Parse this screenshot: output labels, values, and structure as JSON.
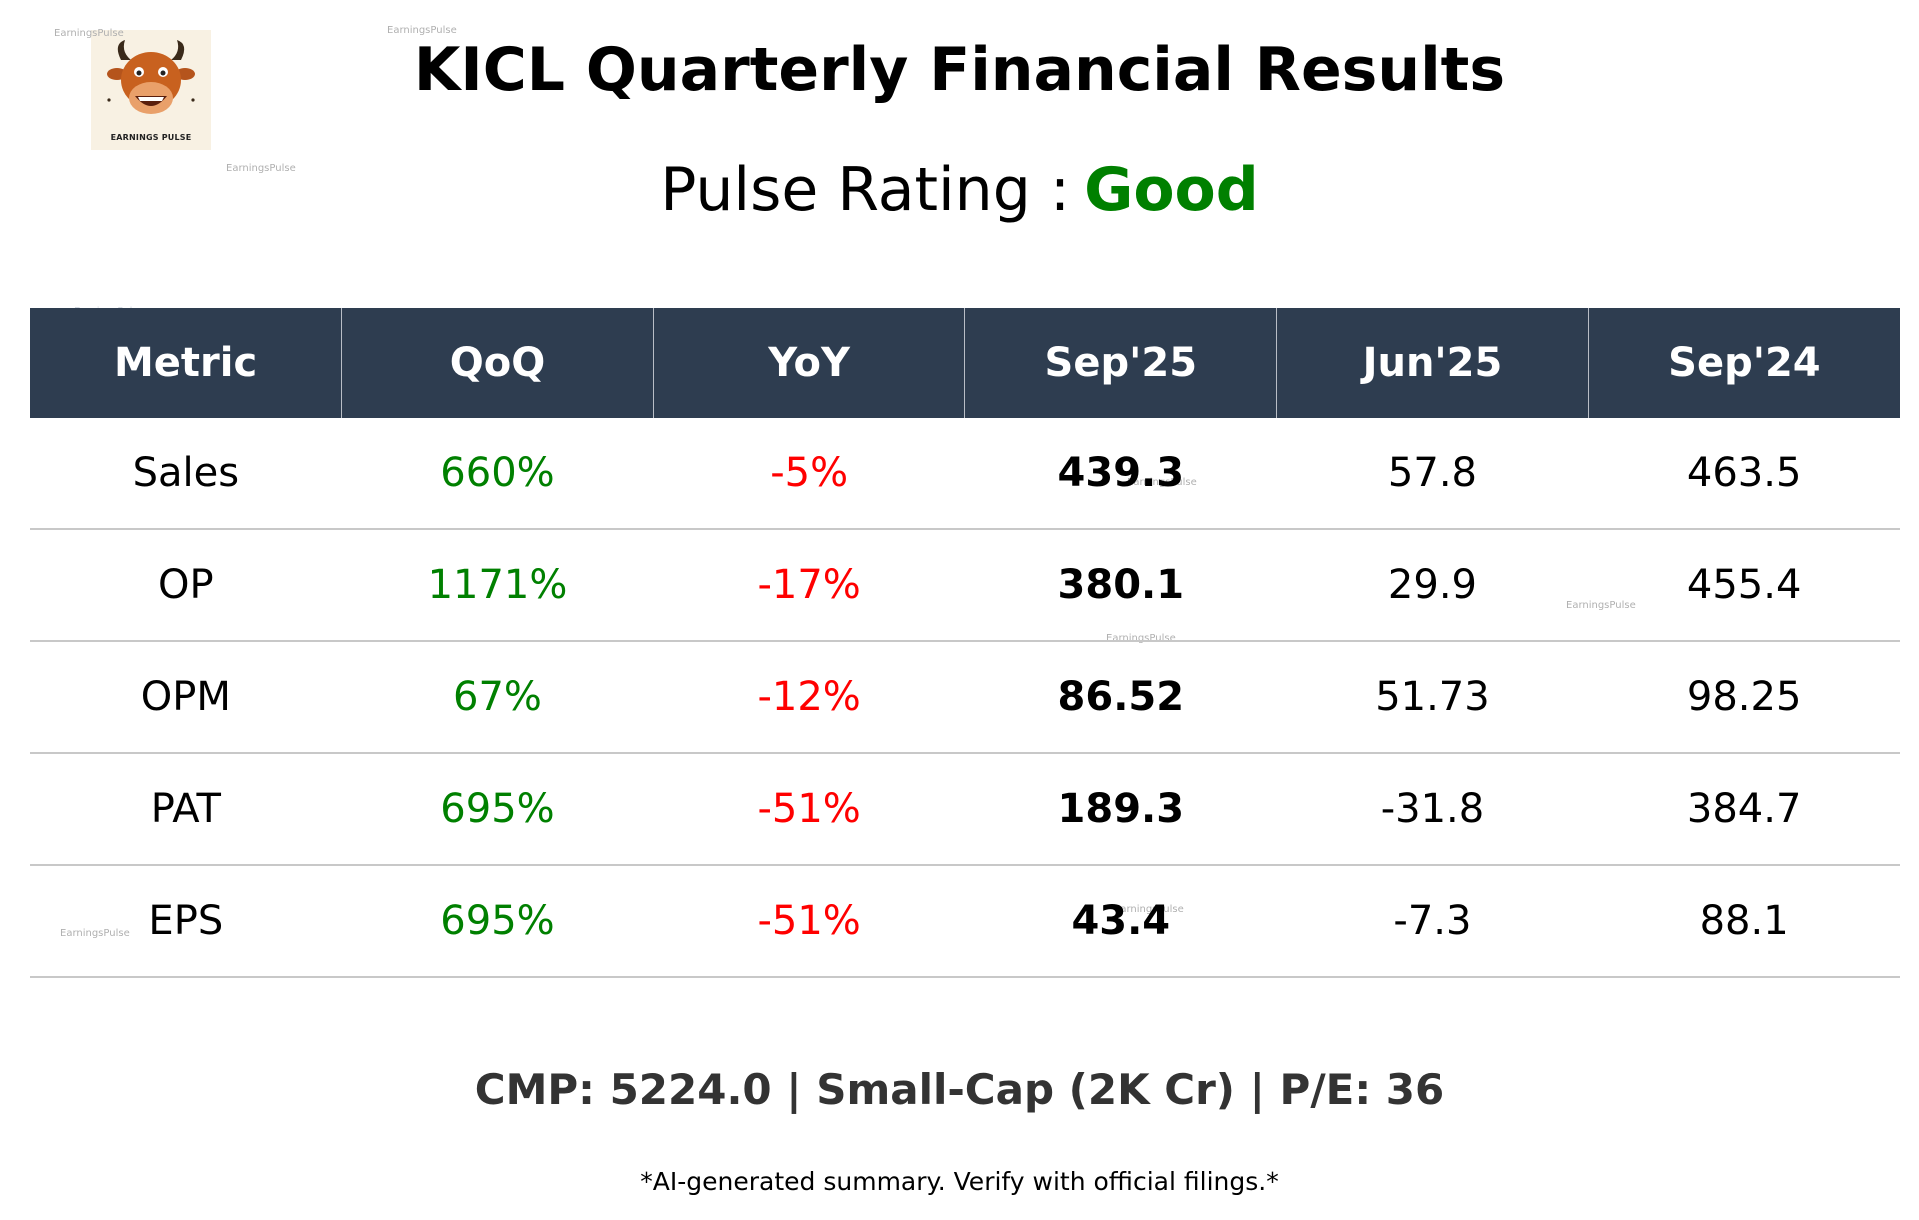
{
  "logo": {
    "text": "EARNINGS PULSE"
  },
  "title": "KICL Quarterly Financial Results",
  "rating": {
    "label": "Pulse Rating :",
    "value": "Good"
  },
  "table": {
    "headers": [
      "Metric",
      "QoQ",
      "YoY",
      "Sep'25",
      "Jun'25",
      "Sep'24"
    ],
    "rows": [
      {
        "metric": "Sales",
        "qoq": "660%",
        "yoy": "-5%",
        "sep25": "439.3",
        "jun25": "57.8",
        "sep24": "463.5"
      },
      {
        "metric": "OP",
        "qoq": "1171%",
        "yoy": "-17%",
        "sep25": "380.1",
        "jun25": "29.9",
        "sep24": "455.4"
      },
      {
        "metric": "OPM",
        "qoq": "67%",
        "yoy": "-12%",
        "sep25": "86.52",
        "jun25": "51.73",
        "sep24": "98.25"
      },
      {
        "metric": "PAT",
        "qoq": "695%",
        "yoy": "-51%",
        "sep25": "189.3",
        "jun25": "-31.8",
        "sep24": "384.7"
      },
      {
        "metric": "EPS",
        "qoq": "695%",
        "yoy": "-51%",
        "sep25": "43.4",
        "jun25": "-7.3",
        "sep24": "88.1"
      }
    ]
  },
  "footer": {
    "stats": "CMP: 5224.0 | Small-Cap (2K Cr) | P/E: 36",
    "disclaimer": "*AI-generated summary. Verify with official filings.*"
  },
  "watermark": "EarningsPulse",
  "colors": {
    "header_bg": "#2e3d50",
    "positive": "#008000",
    "negative": "#ff0000",
    "rating_good": "#008000"
  }
}
